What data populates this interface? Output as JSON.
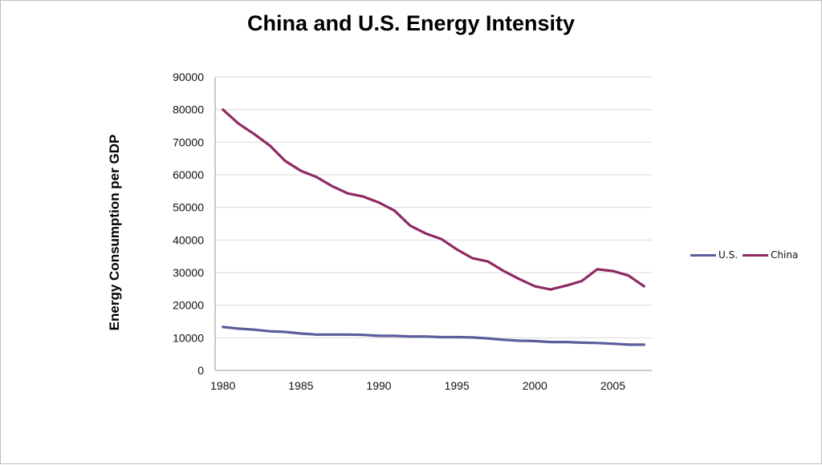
{
  "chart_data": {
    "type": "line",
    "title": "China and U.S. Energy Intensity",
    "xlabel": "",
    "ylabel": "Energy Consumption per GDP",
    "x": [
      1980,
      1981,
      1982,
      1983,
      1984,
      1985,
      1986,
      1987,
      1988,
      1989,
      1990,
      1991,
      1992,
      1993,
      1994,
      1995,
      1996,
      1997,
      1998,
      1999,
      2000,
      2001,
      2002,
      2003,
      2004,
      2005,
      2006,
      2007
    ],
    "x_ticks": [
      "1980",
      "1985",
      "1990",
      "1995",
      "2000",
      "2005"
    ],
    "x_tick_values": [
      1980,
      1985,
      1990,
      1995,
      2000,
      2005
    ],
    "xlim": [
      1979.5,
      2007.5
    ],
    "ylim": [
      0,
      90000
    ],
    "y_ticks": [
      "0",
      "10000",
      "20000",
      "30000",
      "40000",
      "50000",
      "60000",
      "70000",
      "80000",
      "90000"
    ],
    "y_tick_values": [
      0,
      10000,
      20000,
      30000,
      40000,
      50000,
      60000,
      70000,
      80000,
      90000
    ],
    "grid": "horizontal",
    "legend_position": "right",
    "series": [
      {
        "name": "U.S.",
        "color": "#5b5d9c",
        "values": [
          13300,
          12800,
          12500,
          12000,
          11800,
          11300,
          11000,
          11000,
          11000,
          10900,
          10600,
          10600,
          10400,
          10400,
          10200,
          10200,
          10100,
          9800,
          9400,
          9100,
          9000,
          8700,
          8700,
          8500,
          8400,
          8200,
          7900,
          7900
        ]
      },
      {
        "name": "China",
        "color": "#8e2a62",
        "values": [
          80000,
          75700,
          72500,
          69000,
          64200,
          61200,
          59300,
          56500,
          54300,
          53300,
          51500,
          49000,
          44400,
          42000,
          40300,
          37100,
          34400,
          33400,
          30500,
          28000,
          25800,
          24800,
          26000,
          27400,
          31000,
          30500,
          29100,
          25800
        ]
      }
    ]
  }
}
